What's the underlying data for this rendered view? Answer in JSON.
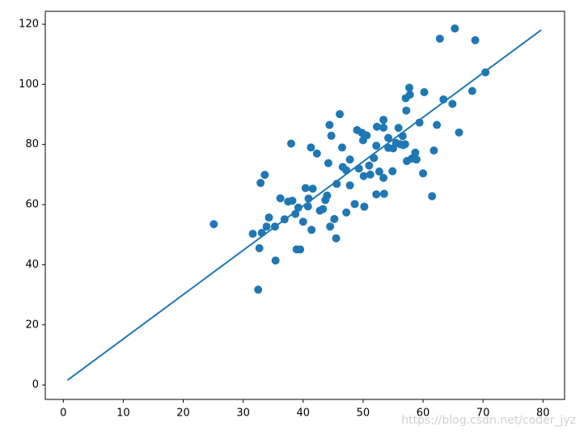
{
  "chart_data": {
    "type": "scatter",
    "xlim": [
      -3,
      83.6
    ],
    "ylim": [
      -4.8,
      124.3
    ],
    "xticks": [
      0,
      10,
      20,
      30,
      40,
      50,
      60,
      70,
      80
    ],
    "yticks": [
      0,
      20,
      40,
      60,
      80,
      100,
      120
    ],
    "series": [
      {
        "type": "scatter",
        "color": "#1f77b4",
        "x": [
          25.1,
          31.6,
          32.5,
          32.7,
          32.9,
          33.1,
          33.6,
          33.9,
          34.3,
          35.3,
          35.4,
          36.2,
          36.9,
          37.5,
          38.0,
          38.2,
          38.7,
          38.9,
          39.2,
          39.5,
          40.0,
          40.4,
          40.8,
          40.9,
          41.3,
          41.4,
          41.6,
          42.3,
          42.8,
          43.3,
          43.7,
          44.0,
          44.2,
          44.4,
          44.5,
          44.7,
          45.2,
          45.5,
          45.6,
          46.1,
          46.5,
          46.6,
          47.2,
          47.2,
          47.8,
          47.8,
          48.6,
          49.0,
          49.3,
          49.8,
          50.0,
          50.1,
          50.2,
          50.6,
          51.0,
          51.2,
          51.8,
          52.2,
          52.2,
          52.3,
          52.7,
          53.4,
          53.4,
          53.4,
          53.5,
          54.2,
          54.2,
          54.9,
          55.0,
          55.5,
          55.9,
          56.2,
          56.6,
          56.7,
          57.0,
          57.1,
          57.2,
          57.3,
          57.7,
          57.8,
          58.1,
          58.7,
          58.9,
          59.4,
          60.0,
          60.2,
          61.5,
          61.8,
          62.3,
          62.8,
          63.4,
          64.9,
          65.3,
          66.0,
          68.2,
          68.7,
          70.4
        ],
        "values": [
          53.5,
          50.3,
          31.7,
          45.5,
          67.2,
          50.6,
          69.9,
          52.7,
          55.7,
          52.7,
          41.4,
          62.1,
          55.1,
          61.0,
          80.3,
          61.3,
          56.9,
          45.1,
          59.0,
          45.1,
          54.3,
          65.5,
          59.4,
          62.0,
          79.0,
          51.6,
          65.3,
          77.0,
          58.0,
          58.5,
          61.5,
          63.0,
          73.8,
          86.5,
          52.7,
          82.9,
          55.2,
          48.8,
          66.9,
          90.1,
          79.0,
          72.5,
          71.4,
          57.4,
          75.0,
          66.4,
          60.2,
          84.8,
          72.0,
          83.9,
          81.4,
          69.5,
          59.3,
          83.0,
          73.0,
          70.0,
          75.5,
          63.4,
          79.6,
          85.9,
          71.0,
          88.2,
          85.6,
          68.9,
          63.6,
          78.9,
          82.2,
          71.1,
          78.7,
          80.5,
          85.5,
          80.1,
          82.8,
          79.8,
          80.1,
          95.4,
          91.3,
          74.5,
          98.9,
          96.6,
          75.3,
          77.3,
          75.0,
          87.3,
          70.4,
          97.4,
          62.8,
          78.0,
          86.5,
          115.2,
          95.0,
          93.5,
          118.6,
          84.0,
          97.8,
          114.7,
          104.0
        ]
      },
      {
        "type": "line",
        "color": "#1f77b4",
        "x": [
          0.7,
          79.7
        ],
        "values": [
          1.6,
          118.1
        ]
      }
    ],
    "watermark": "https://blog.csdn.net/coder_jyz"
  }
}
